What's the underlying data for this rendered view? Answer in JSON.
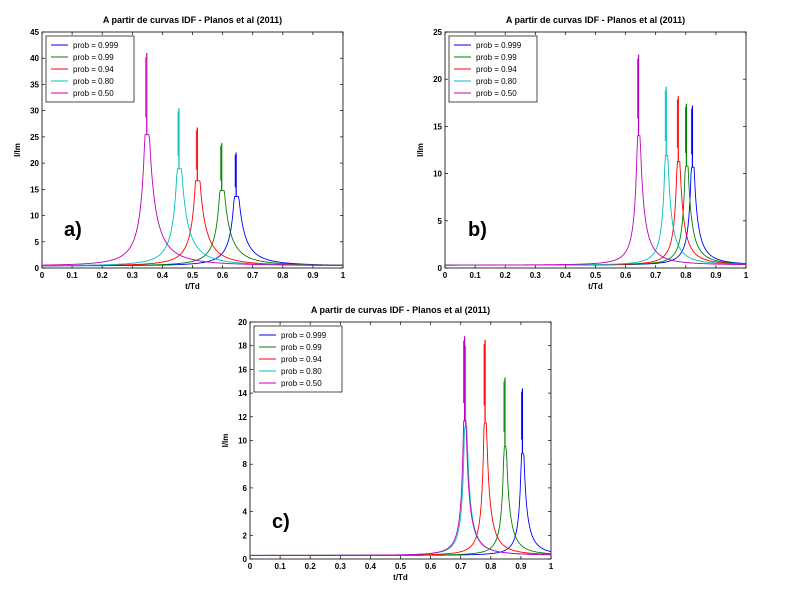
{
  "chart_data": [
    {
      "type": "line",
      "title": "A partir de curvas IDF - Planos et al (2011)",
      "xlabel": "t/Td",
      "ylabel": "I/Im",
      "panel_label": "a)",
      "xlim": [
        0,
        1
      ],
      "ylim": [
        0,
        45
      ],
      "xticks": [
        "0",
        "0.1",
        "0.2",
        "0.3",
        "0.4",
        "0.5",
        "0.6",
        "0.7",
        "0.8",
        "0.9",
        "1"
      ],
      "yticks": [
        "0",
        "5",
        "10",
        "15",
        "20",
        "25",
        "30",
        "35",
        "40",
        "45"
      ],
      "legend_position": "top-left",
      "series": [
        {
          "name": "prob = 0.999",
          "color": "#0000ff",
          "peak_x": 0.645,
          "peak_y": 22.0,
          "base_y": 0.4
        },
        {
          "name": "prob = 0.99",
          "color": "#008000",
          "peak_x": 0.597,
          "peak_y": 23.8,
          "base_y": 0.4
        },
        {
          "name": "prob = 0.94",
          "color": "#ff0000",
          "peak_x": 0.516,
          "peak_y": 26.8,
          "base_y": 0.4
        },
        {
          "name": "prob = 0.80",
          "color": "#00bfbf",
          "peak_x": 0.455,
          "peak_y": 30.5,
          "base_y": 0.4
        },
        {
          "name": "prob = 0.50",
          "color": "#bf00bf",
          "peak_x": 0.348,
          "peak_y": 41.0,
          "base_y": 0.4
        }
      ]
    },
    {
      "type": "line",
      "title": "A partir de curvas IDF - Planos et al (2011)",
      "xlabel": "t/Td",
      "ylabel": "I/Im",
      "panel_label": "b)",
      "xlim": [
        0,
        1
      ],
      "ylim": [
        0,
        25
      ],
      "xticks": [
        "0",
        "0.1",
        "0.2",
        "0.3",
        "0.4",
        "0.5",
        "0.6",
        "0.7",
        "0.8",
        "0.9",
        "1"
      ],
      "yticks": [
        "0",
        "5",
        "10",
        "15",
        "20",
        "25"
      ],
      "legend_position": "top-left",
      "series": [
        {
          "name": "prob = 0.999",
          "color": "#0000ff",
          "peak_x": 0.822,
          "peak_y": 17.2,
          "base_y": 0.3
        },
        {
          "name": "prob = 0.99",
          "color": "#008000",
          "peak_x": 0.802,
          "peak_y": 17.4,
          "base_y": 0.3
        },
        {
          "name": "prob = 0.94",
          "color": "#ff0000",
          "peak_x": 0.775,
          "peak_y": 18.2,
          "base_y": 0.3
        },
        {
          "name": "prob = 0.80",
          "color": "#00bfbf",
          "peak_x": 0.735,
          "peak_y": 19.2,
          "base_y": 0.3
        },
        {
          "name": "prob = 0.50",
          "color": "#bf00bf",
          "peak_x": 0.643,
          "peak_y": 22.6,
          "base_y": 0.3
        }
      ]
    },
    {
      "type": "line",
      "title": "A partir de curvas IDF - Planos et al (2011)",
      "xlabel": "t/Td",
      "ylabel": "I/Im",
      "panel_label": "c)",
      "xlim": [
        0,
        1
      ],
      "ylim": [
        0,
        20
      ],
      "xticks": [
        "0",
        "0.1",
        "0.2",
        "0.3",
        "0.4",
        "0.5",
        "0.6",
        "0.7",
        "0.8",
        "0.9",
        "1"
      ],
      "yticks": [
        "0",
        "2",
        "4",
        "6",
        "8",
        "10",
        "12",
        "14",
        "16",
        "18",
        "20"
      ],
      "legend_position": "top-left",
      "series": [
        {
          "name": "prob = 0.999",
          "color": "#0000ff",
          "peak_x": 0.905,
          "peak_y": 14.4,
          "base_y": 0.3
        },
        {
          "name": "prob = 0.99",
          "color": "#008000",
          "peak_x": 0.847,
          "peak_y": 15.3,
          "base_y": 0.3
        },
        {
          "name": "prob = 0.94",
          "color": "#ff0000",
          "peak_x": 0.781,
          "peak_y": 18.5,
          "base_y": 0.3
        },
        {
          "name": "prob = 0.80",
          "color": "#00bfbf",
          "peak_x": 0.716,
          "peak_y": 18.0,
          "base_y": 0.3
        },
        {
          "name": "prob = 0.50",
          "color": "#bf00bf",
          "peak_x": 0.713,
          "peak_y": 18.8,
          "base_y": 0.3
        }
      ]
    }
  ]
}
